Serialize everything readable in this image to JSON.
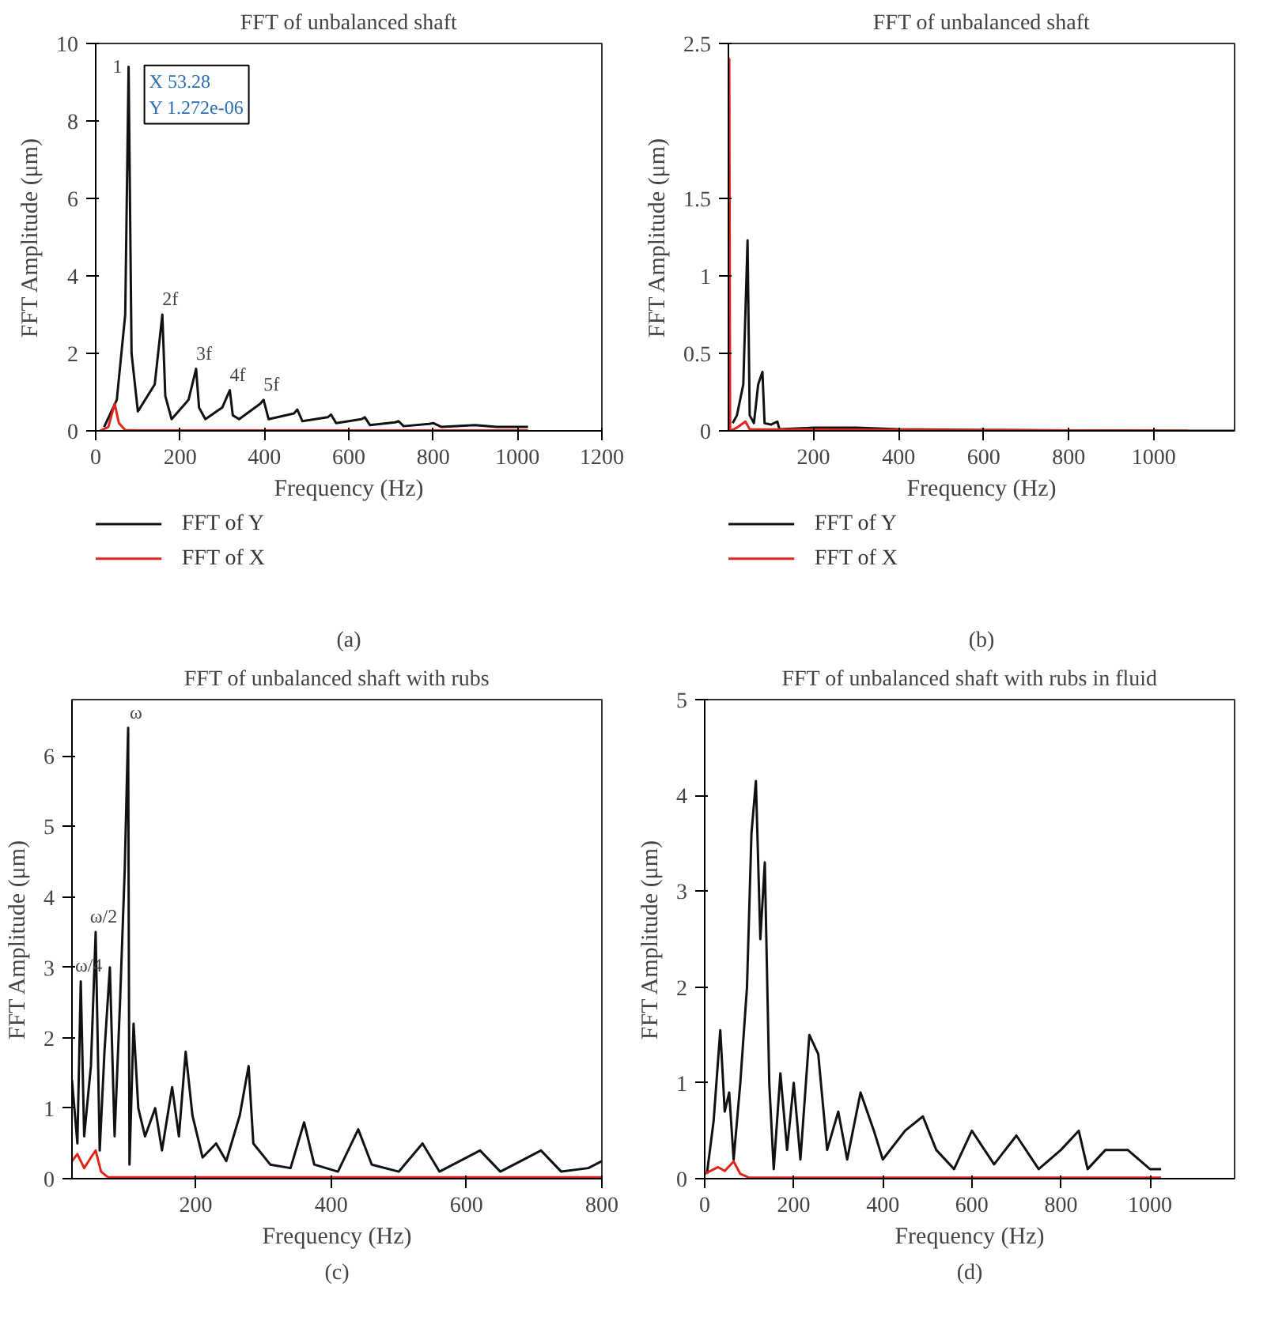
{
  "chart_data": [
    {
      "type": "line",
      "title": "FFT of unbalanced shaft",
      "xlabel": "Frequency (Hz)",
      "ylabel": "FFT Amplitude (μm)",
      "xlim": [
        0,
        1200
      ],
      "ylim": [
        0,
        10
      ],
      "xticks": [
        0,
        200,
        400,
        600,
        800,
        1000,
        1200
      ],
      "yticks": [
        0,
        2,
        4,
        6,
        8,
        10
      ],
      "legend": "bottom",
      "grid": false,
      "series": [
        {
          "name": "FFT of Y",
          "color": "#111111",
          "x": [
            20,
            50,
            70,
            78,
            85,
            100,
            140,
            158,
            165,
            180,
            220,
            238,
            245,
            260,
            300,
            318,
            325,
            340,
            390,
            398,
            410,
            470,
            478,
            490,
            550,
            558,
            570,
            630,
            638,
            650,
            710,
            718,
            730,
            790,
            800,
            820,
            900,
            950,
            1025
          ],
          "values": [
            0.1,
            0.8,
            3,
            9.4,
            2,
            0.5,
            1.2,
            3.0,
            0.9,
            0.3,
            0.8,
            1.6,
            0.6,
            0.3,
            0.6,
            1.05,
            0.4,
            0.3,
            0.7,
            0.8,
            0.3,
            0.45,
            0.55,
            0.25,
            0.35,
            0.42,
            0.2,
            0.3,
            0.35,
            0.15,
            0.22,
            0.25,
            0.12,
            0.18,
            0.2,
            0.1,
            0.15,
            0.1,
            0.1
          ]
        },
        {
          "name": "FFT of X",
          "color": "#e0251b",
          "x": [
            10,
            30,
            45,
            55,
            70,
            100,
            1025
          ],
          "values": [
            0,
            0.1,
            0.7,
            0.2,
            0.02,
            0.01,
            0.01
          ]
        }
      ],
      "annotations": [
        {
          "text": "1",
          "x": 78,
          "y": 9.4
        },
        {
          "text": "X 53.28\nY 1.272e-06",
          "x": 78,
          "y": 9.4
        },
        {
          "text": "2f",
          "x": 158,
          "y": 3.0
        },
        {
          "text": "3f",
          "x": 238,
          "y": 1.6
        },
        {
          "text": "4f",
          "x": 318,
          "y": 1.05
        },
        {
          "text": "5f",
          "x": 398,
          "y": 0.8
        },
        "(a)"
      ]
    },
    {
      "type": "line",
      "title": "FFT of unbalanced shaft",
      "xlabel": "Frequency (Hz)",
      "ylabel": "FFT Amplitude (μm)",
      "xlim": [
        0,
        1190
      ],
      "ylim": [
        0,
        2.5
      ],
      "xticks": [
        200,
        400,
        600,
        800,
        1000
      ],
      "yticks": [
        0,
        0.5,
        1,
        1.5,
        2.5
      ],
      "legend": "bottom",
      "grid": false,
      "series": [
        {
          "name": "FFT of Y",
          "color": "#111111",
          "x": [
            10,
            20,
            35,
            45,
            50,
            60,
            70,
            80,
            85,
            100,
            115,
            120,
            200,
            300,
            400,
            600,
            800,
            1080,
            1190
          ],
          "values": [
            0.05,
            0.1,
            0.3,
            1.23,
            0.1,
            0.05,
            0.3,
            0.38,
            0.05,
            0.04,
            0.06,
            0.01,
            0.02,
            0.02,
            0.01,
            0.005,
            0.003,
            0,
            0
          ]
        },
        {
          "name": "FFT of X",
          "color": "#e0251b",
          "x": [
            1,
            2,
            4,
            20,
            40,
            50,
            1080
          ],
          "values": [
            0,
            2.4,
            0,
            0.02,
            0.06,
            0.01,
            0
          ]
        }
      ],
      "annotations": [
        "(b)"
      ]
    },
    {
      "type": "line",
      "title": "FFT of unbalanced shaft with rubs",
      "xlabel": "Frequency (Hz)",
      "ylabel": "FFT Amplitude (μm)",
      "xlim": [
        17,
        800
      ],
      "ylim": [
        0,
        6.8
      ],
      "xticks": [
        200,
        400,
        600,
        800
      ],
      "yticks": [
        0,
        1,
        2,
        3,
        4,
        5,
        6
      ],
      "grid": false,
      "series": [
        {
          "color": "#111111",
          "x": [
            17,
            25,
            30,
            35,
            45,
            52,
            58,
            65,
            73,
            80,
            88,
            95,
            100,
            102,
            108,
            115,
            125,
            140,
            150,
            165,
            175,
            185,
            195,
            210,
            230,
            245,
            265,
            278,
            285,
            310,
            340,
            360,
            375,
            410,
            440,
            460,
            500,
            535,
            560,
            620,
            650,
            710,
            740,
            780,
            800
          ],
          "values": [
            1.4,
            0.5,
            2.8,
            0.6,
            1.6,
            3.5,
            0.4,
            1.8,
            3.0,
            0.6,
            2.5,
            4.4,
            6.4,
            0.2,
            2.2,
            1.0,
            0.6,
            1.0,
            0.4,
            1.3,
            0.6,
            1.8,
            0.9,
            0.3,
            0.5,
            0.25,
            0.9,
            1.6,
            0.5,
            0.2,
            0.15,
            0.8,
            0.2,
            0.1,
            0.7,
            0.2,
            0.1,
            0.5,
            0.1,
            0.4,
            0.1,
            0.4,
            0.1,
            0.15,
            0.25
          ]
        },
        {
          "color": "#e0251b",
          "x": [
            17,
            25,
            35,
            45,
            52,
            60,
            70,
            800
          ],
          "values": [
            0.25,
            0.35,
            0.15,
            0.3,
            0.4,
            0.1,
            0.02,
            0.02
          ]
        }
      ],
      "annotations": [
        {
          "text": "ω",
          "x": 100,
          "y": 6.4
        },
        {
          "text": "ω/2",
          "x": 52,
          "y": 3.5
        },
        {
          "text": "ω/4",
          "x": 30,
          "y": 2.8
        },
        "(c)"
      ]
    },
    {
      "type": "line",
      "title": "FFT of unbalanced shaft with rubs in fluid",
      "xlabel": "Frequency (Hz)",
      "ylabel": "FFT Amplitude (μm)",
      "xlim": [
        0,
        1190
      ],
      "ylim": [
        0,
        5
      ],
      "xticks": [
        0,
        200,
        400,
        600,
        800,
        1000
      ],
      "yticks": [
        0,
        1,
        2,
        3,
        4,
        5
      ],
      "grid": false,
      "series": [
        {
          "color": "#111111",
          "x": [
            5,
            20,
            35,
            45,
            55,
            65,
            80,
            95,
            105,
            115,
            125,
            135,
            145,
            155,
            170,
            185,
            200,
            215,
            235,
            255,
            275,
            300,
            320,
            350,
            380,
            400,
            450,
            490,
            520,
            560,
            600,
            650,
            700,
            750,
            800,
            840,
            860,
            900,
            950,
            1000,
            1025
          ],
          "values": [
            0.05,
            0.6,
            1.55,
            0.7,
            0.9,
            0.2,
            1.0,
            2.0,
            3.6,
            4.15,
            2.5,
            3.3,
            1.0,
            0.1,
            1.1,
            0.3,
            1.0,
            0.2,
            1.5,
            1.3,
            0.3,
            0.7,
            0.2,
            0.9,
            0.5,
            0.2,
            0.5,
            0.65,
            0.3,
            0.1,
            0.5,
            0.15,
            0.45,
            0.1,
            0.3,
            0.5,
            0.1,
            0.3,
            0.3,
            0.1,
            0.1
          ]
        },
        {
          "color": "#e0251b",
          "x": [
            0,
            30,
            45,
            65,
            80,
            100,
            1025
          ],
          "values": [
            0.05,
            0.12,
            0.08,
            0.18,
            0.05,
            0.01,
            0.01
          ]
        }
      ],
      "annotations": [
        "(d)"
      ]
    }
  ]
}
